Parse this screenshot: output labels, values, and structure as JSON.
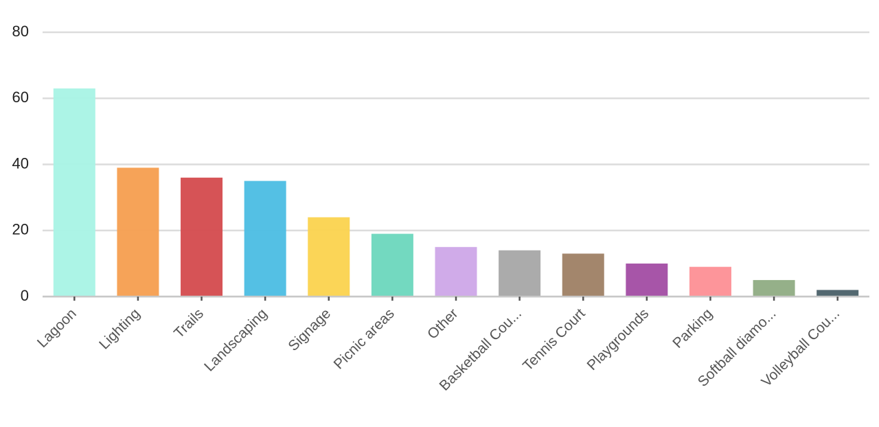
{
  "chart_data": {
    "type": "bar",
    "categories": [
      "Lagoon",
      "Lighting",
      "Trails",
      "Landscaping",
      "Signage",
      "Picnic areas",
      "Other",
      "Basketball Cou...",
      "Tennis Court",
      "Playgrounds",
      "Parking",
      "Softball diamo...",
      "Volleyball Cou..."
    ],
    "values": [
      63,
      39,
      36,
      35,
      24,
      19,
      15,
      14,
      13,
      10,
      9,
      5,
      2
    ],
    "colors": [
      "#a8f3e5",
      "#f59e4f",
      "#d44a4d",
      "#4bbde3",
      "#fbd34e",
      "#6bd7bd",
      "#cda6e8",
      "#a6a6a6",
      "#9e7f64",
      "#a24ca3",
      "#fd8f95",
      "#8fac83",
      "#4a6068"
    ],
    "ylim": [
      0,
      80
    ],
    "yticks": [
      0,
      20,
      40,
      60,
      80
    ],
    "grid": true
  }
}
